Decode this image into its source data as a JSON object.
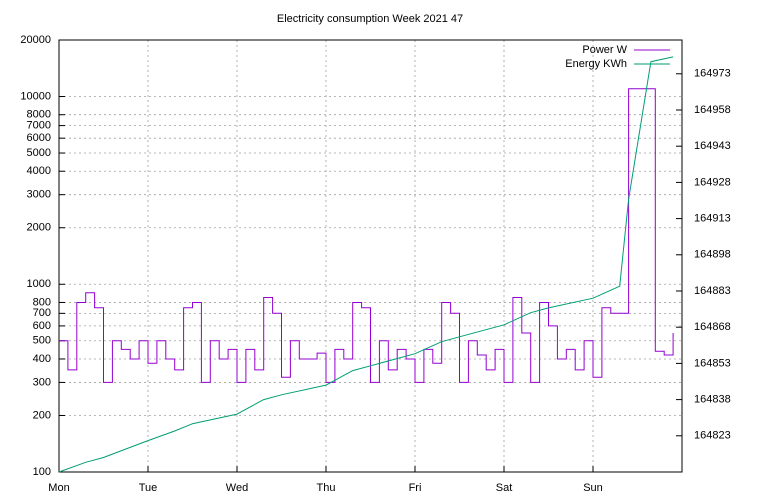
{
  "chart_data": {
    "type": "line",
    "title": "Electricity consumption Week 2021 47",
    "xlim": [
      0,
      7
    ],
    "xticks": [
      {
        "value": 0,
        "label": "Mon"
      },
      {
        "value": 1,
        "label": "Tue"
      },
      {
        "value": 2,
        "label": "Wed"
      },
      {
        "value": 3,
        "label": "Thu"
      },
      {
        "value": 4,
        "label": "Fri"
      },
      {
        "value": 5,
        "label": "Sat"
      },
      {
        "value": 6,
        "label": "Sun"
      }
    ],
    "ylim": [
      100,
      20000
    ],
    "ylog": true,
    "yticks": [
      100,
      200,
      300,
      400,
      500,
      600,
      700,
      800,
      1000,
      2000,
      3000,
      4000,
      5000,
      6000,
      7000,
      8000,
      10000,
      20000
    ],
    "y2lim": [
      164808,
      164987
    ],
    "y2ticks": [
      164823,
      164838,
      164853,
      164868,
      164883,
      164898,
      164913,
      164928,
      164943,
      164958,
      164973
    ],
    "grid": true,
    "legend": "top-right",
    "series": [
      {
        "name": "Power W",
        "color": "#9400d3",
        "style": "steps",
        "x": [
          0.0,
          0.1,
          0.2,
          0.3,
          0.4,
          0.5,
          0.6,
          0.7,
          0.8,
          0.9,
          1.0,
          1.1,
          1.2,
          1.3,
          1.4,
          1.5,
          1.6,
          1.7,
          1.8,
          1.9,
          2.0,
          2.1,
          2.2,
          2.3,
          2.4,
          2.5,
          2.6,
          2.7,
          2.8,
          2.9,
          3.0,
          3.1,
          3.2,
          3.3,
          3.4,
          3.5,
          3.6,
          3.7,
          3.8,
          3.9,
          4.0,
          4.1,
          4.2,
          4.3,
          4.4,
          4.5,
          4.6,
          4.7,
          4.8,
          4.9,
          5.0,
          5.1,
          5.2,
          5.3,
          5.4,
          5.5,
          5.6,
          5.7,
          5.8,
          5.9,
          6.0,
          6.1,
          6.2,
          6.3,
          6.4,
          6.5,
          6.6,
          6.7,
          6.8,
          6.9
        ],
        "values": [
          500,
          350,
          800,
          900,
          750,
          300,
          500,
          450,
          400,
          500,
          380,
          500,
          400,
          350,
          750,
          800,
          300,
          500,
          400,
          450,
          300,
          450,
          350,
          850,
          700,
          320,
          500,
          400,
          400,
          430,
          300,
          450,
          400,
          800,
          750,
          300,
          500,
          350,
          450,
          400,
          300,
          450,
          380,
          800,
          700,
          300,
          500,
          420,
          350,
          450,
          300,
          850,
          550,
          300,
          800,
          600,
          400,
          450,
          350,
          500,
          320,
          750,
          700,
          700,
          11000,
          11000,
          11000,
          440,
          420,
          550
        ]
      },
      {
        "name": "Energy KWh",
        "color": "#009e73",
        "axis": "y2",
        "x": [
          0,
          0.3,
          0.5,
          1.0,
          1.3,
          1.5,
          2.0,
          2.3,
          2.5,
          3.0,
          3.3,
          3.5,
          4.0,
          4.3,
          4.5,
          5.0,
          5.3,
          5.5,
          6.0,
          6.3,
          6.4,
          6.65,
          6.9
        ],
        "values": [
          164808,
          164812,
          164814,
          164821,
          164825,
          164828,
          164832,
          164838,
          164840,
          164844,
          164850,
          164852,
          164857,
          164862,
          164864,
          164869,
          164874,
          164876,
          164880,
          164885,
          164921,
          164978,
          164980
        ]
      }
    ]
  }
}
